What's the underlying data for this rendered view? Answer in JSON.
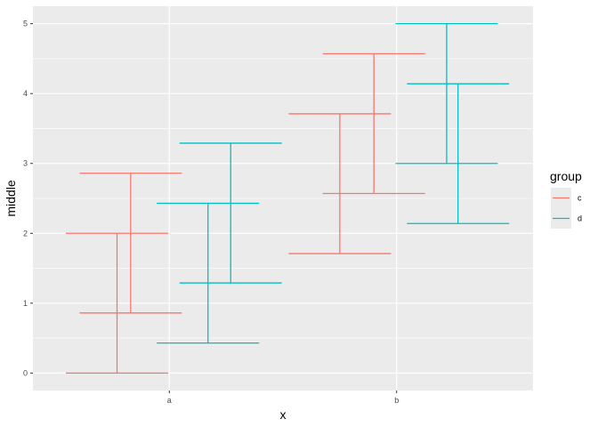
{
  "chart_data": {
    "type": "errorbar",
    "xlabel": "x",
    "ylabel": "middle",
    "categories": [
      "a",
      "b"
    ],
    "ylim": [
      -0.25,
      5.25
    ],
    "yticks": [
      0,
      1,
      2,
      3,
      4,
      5
    ],
    "grid": true,
    "legend": {
      "title": "group",
      "position": "right",
      "entries": [
        {
          "label": "c",
          "color": "#F8766D"
        },
        {
          "label": "d",
          "color": "#00BFC4"
        }
      ]
    },
    "series": [
      {
        "group": "c",
        "color": "#F8766D",
        "bars": [
          {
            "x": "a",
            "offset": -0.23,
            "width": 0.45,
            "ymin": 0.0,
            "ymax": 2.0
          },
          {
            "x": "a",
            "offset": -0.17,
            "width": 0.45,
            "ymin": 0.86,
            "ymax": 2.86
          },
          {
            "x": "b",
            "offset": -0.25,
            "width": 0.45,
            "ymin": 1.71,
            "ymax": 3.71
          },
          {
            "x": "b",
            "offset": -0.1,
            "width": 0.45,
            "ymin": 2.57,
            "ymax": 4.57
          }
        ]
      },
      {
        "group": "d",
        "color": "#00BFC4",
        "bars": [
          {
            "x": "a",
            "offset": 0.17,
            "width": 0.45,
            "ymin": 0.43,
            "ymax": 2.43
          },
          {
            "x": "a",
            "offset": 0.27,
            "width": 0.45,
            "ymin": 1.29,
            "ymax": 3.29
          },
          {
            "x": "b",
            "offset": 0.22,
            "width": 0.45,
            "ymin": 3.0,
            "ymax": 5.0
          },
          {
            "x": "b",
            "offset": 0.27,
            "width": 0.45,
            "ymin": 2.14,
            "ymax": 4.14
          }
        ]
      }
    ]
  }
}
